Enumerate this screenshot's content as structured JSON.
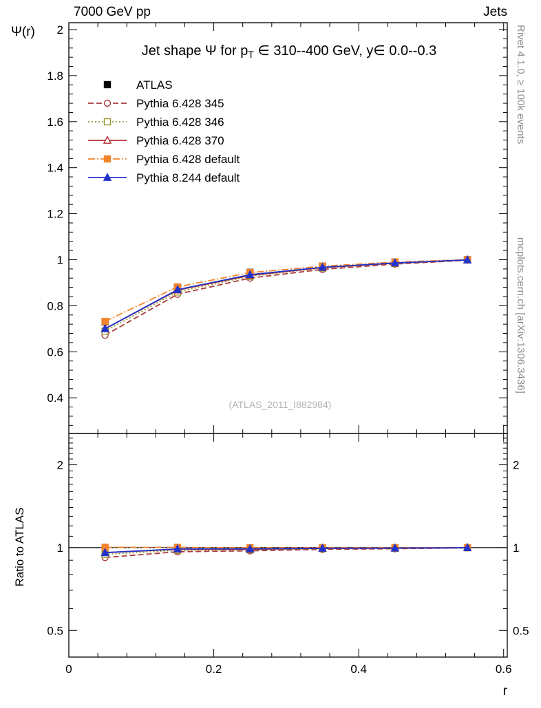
{
  "header": {
    "left": "7000 GeV pp",
    "right": "Jets"
  },
  "side_notes": {
    "top_right": "Rivet 4.1.0, ≥ 100k events",
    "bottom_right": "mcplots.cern.ch [arXiv:1306.3436]"
  },
  "watermark": "(ATLAS_2011_I882984)",
  "labels": {
    "title_pre": "Jet shape Ψ for p",
    "title_sub": "T",
    "title_post": " ∈ 310--400 GeV, y∈ 0.0--0.3",
    "y_main": "Ψ(r)",
    "y_ratio": "Ratio to ATLAS",
    "x": "r"
  },
  "chart_data": {
    "type": "line",
    "title": "Jet shape Ψ for pT ∈ 310--400 GeV, y∈ 0.0--0.3",
    "xlabel": "r",
    "ylabel_main": "Ψ(r)",
    "ylabel_ratio": "Ratio to ATLAS",
    "xlim": [
      0,
      0.605
    ],
    "ylim_main": [
      0.245,
      2.03
    ],
    "ylim_ratio": [
      0.4,
      2.6
    ],
    "ratio_scale": "log",
    "grid": false,
    "legend_position": "top-left",
    "xticks": [
      "0",
      "0.2",
      "0.4",
      "0.6"
    ],
    "yticks_main": [
      "0.4",
      "0.6",
      "0.8",
      "1",
      "1.2",
      "1.4",
      "1.6",
      "1.8",
      "2"
    ],
    "yticks_ratio": [
      "0.5",
      "1",
      "2"
    ],
    "x": [
      0.05,
      0.15,
      0.25,
      0.35,
      0.45,
      0.55
    ],
    "reference": "ATLAS",
    "series": [
      {
        "id": "atlas",
        "name": "ATLAS",
        "color": "#000000",
        "marker": "square",
        "filled": true,
        "line": "none",
        "dash": "",
        "values": [
          0.73,
          0.88,
          0.945,
          0.972,
          0.99,
          1.0
        ],
        "err": [
          0.012,
          0.008,
          0.005,
          0.004,
          0.003,
          0.002
        ]
      },
      {
        "id": "p6-345",
        "name": "Pythia 6.428 345",
        "color": "#aa3a3a",
        "marker": "circle",
        "filled": false,
        "line": "dashed",
        "dash": "8,4",
        "values": [
          0.672,
          0.85,
          0.92,
          0.958,
          0.981,
          0.998
        ],
        "err": [
          0.004,
          0.004,
          0.003,
          0.003,
          0.002,
          0.002
        ]
      },
      {
        "id": "p6-346",
        "name": "Pythia 6.428 346",
        "color": "#97972f",
        "marker": "square",
        "filled": false,
        "line": "dotted",
        "dash": "2,3",
        "values": [
          0.69,
          0.86,
          0.928,
          0.964,
          0.984,
          0.999
        ],
        "err": [
          0.004,
          0.004,
          0.003,
          0.003,
          0.002,
          0.002
        ]
      },
      {
        "id": "p6-370",
        "name": "Pythia 6.428 370",
        "color": "#b03030",
        "marker": "triangle",
        "filled": false,
        "line": "solid",
        "dash": "",
        "values": [
          0.7,
          0.868,
          0.932,
          0.966,
          0.985,
          0.999
        ],
        "err": [
          0.004,
          0.004,
          0.003,
          0.003,
          0.002,
          0.002
        ]
      },
      {
        "id": "p6-default",
        "name": "Pythia 6.428 default",
        "color": "#f2842c",
        "marker": "square",
        "filled": true,
        "line": "dashdot",
        "dash": "10,3,2,3",
        "values": [
          0.732,
          0.882,
          0.944,
          0.972,
          0.99,
          1.0
        ],
        "err": [
          0.004,
          0.004,
          0.003,
          0.003,
          0.002,
          0.002
        ]
      },
      {
        "id": "p8-default",
        "name": "Pythia 8.244 default",
        "color": "#2233cc",
        "marker": "triangle",
        "filled": true,
        "line": "solid",
        "dash": "",
        "values": [
          0.7,
          0.87,
          0.935,
          0.967,
          0.986,
          0.999
        ],
        "err": [
          0.004,
          0.004,
          0.003,
          0.003,
          0.002,
          0.002
        ]
      }
    ]
  }
}
